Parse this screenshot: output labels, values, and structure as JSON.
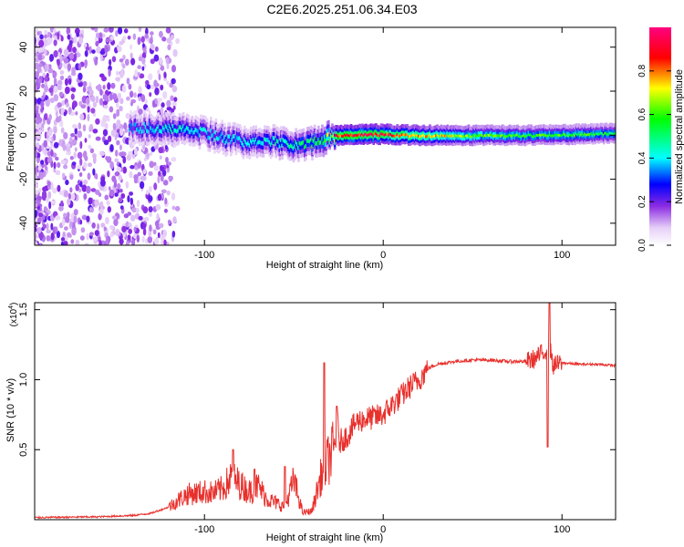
{
  "title": "C2E6.2025.251.06.34.E03",
  "chart_data": [
    {
      "type": "heatmap",
      "name": "spectrogram",
      "xlabel": "Height of straight line (km)",
      "ylabel": "Frequency (Hz)",
      "xlim": [
        -195,
        130
      ],
      "ylim": [
        -50,
        49
      ],
      "xticks": [
        -100,
        0,
        100
      ],
      "xtick_labels": [
        "-100",
        "0",
        "100"
      ],
      "yticks": [
        40,
        20,
        0,
        -20,
        -40
      ],
      "ytick_labels": [
        "40",
        "20",
        "0",
        "-20",
        "-40"
      ],
      "colorbar": {
        "label": "Normalized spectral amplitude",
        "range": [
          0,
          1
        ],
        "ticks": [
          0.0,
          0.2,
          0.4,
          0.6,
          0.8
        ],
        "tick_labels": [
          "0.0",
          "0.2",
          "0.4",
          "0.6",
          "0.8"
        ],
        "colors": [
          "#ffffff",
          "#8a2be2",
          "#0000ff",
          "#00ffff",
          "#00ff00",
          "#ffff00",
          "#ff0000",
          "#ff0080"
        ]
      },
      "ridge_frequency_hz": {
        "x": [
          -140,
          -120,
          -100,
          -80,
          -60,
          -45,
          -35,
          -25,
          -10,
          0,
          20,
          50,
          80,
          110,
          130
        ],
        "y": [
          3.5,
          3,
          1,
          -3,
          -3,
          -5,
          -2,
          0,
          0.5,
          0.5,
          0,
          0,
          0,
          0.5,
          1
        ]
      },
      "ridge_amplitude": {
        "x": [
          -140,
          -120,
          -100,
          -80,
          -60,
          -45,
          -35,
          -25,
          -10,
          0,
          20,
          50,
          80,
          110,
          130
        ],
        "y": [
          0.35,
          0.45,
          0.4,
          0.4,
          0.45,
          0.5,
          0.55,
          0.9,
          0.95,
          0.9,
          0.8,
          0.65,
          0.6,
          0.6,
          0.55
        ]
      }
    },
    {
      "type": "line",
      "name": "snr",
      "xlabel": "Height of straight line (km)",
      "ylabel": "SNR (10 * v/v)",
      "scale_note": "(x10",
      "scale_exp": "4",
      "scale_close": ")",
      "xlim": [
        -195,
        130
      ],
      "ylim": [
        0,
        15500
      ],
      "xticks": [
        -100,
        0,
        100
      ],
      "xtick_labels": [
        "-100",
        "0",
        "100"
      ],
      "yticks": [
        5000,
        10000,
        15000
      ],
      "ytick_labels": [
        "0.5",
        "1.0",
        "1.5"
      ],
      "series": [
        {
          "name": "SNR",
          "color": "#e8302c",
          "x": [
            -195,
            -160,
            -140,
            -130,
            -120,
            -110,
            -100,
            -95,
            -90,
            -85,
            -80,
            -75,
            -70,
            -65,
            -60,
            -55,
            -50,
            -45,
            -40,
            -35,
            -30,
            -25,
            -20,
            -15,
            -10,
            -5,
            0,
            5,
            10,
            15,
            20,
            25,
            30,
            40,
            50,
            60,
            70,
            80,
            85,
            90,
            93,
            95,
            100,
            110,
            120,
            130
          ],
          "y": [
            150,
            200,
            300,
            450,
            900,
            1800,
            2000,
            1900,
            2200,
            3000,
            2500,
            2000,
            2400,
            1500,
            1200,
            900,
            2800,
            500,
            600,
            3000,
            4500,
            5500,
            6000,
            7000,
            7200,
            7300,
            7500,
            8200,
            8800,
            9500,
            10000,
            10800,
            11100,
            11300,
            11400,
            11400,
            11300,
            11300,
            11500,
            12000,
            12500,
            11000,
            11200,
            11100,
            11100,
            11000
          ],
          "spikes": [
            {
              "x": -84,
              "y": 5000
            },
            {
              "x": -72,
              "y": 3600
            },
            {
              "x": -55,
              "y": 3800
            },
            {
              "x": -33,
              "y": 11200
            },
            {
              "x": -26,
              "y": 8100
            },
            {
              "x": 93,
              "y": 15500
            },
            {
              "x": 92,
              "y": 5200
            }
          ]
        }
      ]
    }
  ]
}
